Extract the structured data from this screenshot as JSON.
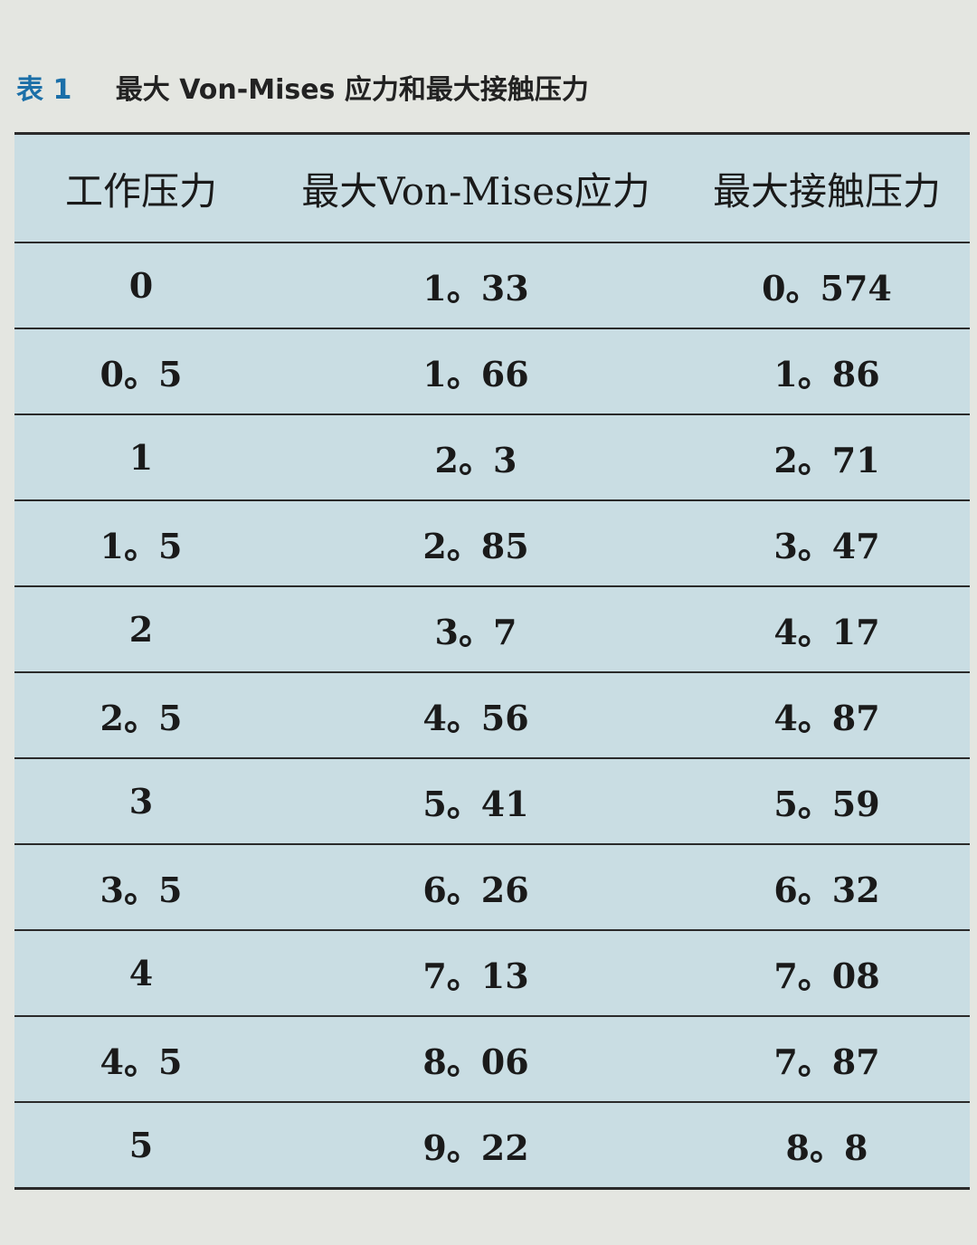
{
  "caption": {
    "label": "表 1",
    "title": "最大 Von-Mises 应力和最大接触压力"
  },
  "table": {
    "headers": [
      "工作压力",
      "最大Von-Mises应力",
      "最大接触压力"
    ],
    "rows": [
      [
        "0",
        "1。33",
        "0。574"
      ],
      [
        "0。5",
        "1。66",
        "1。86"
      ],
      [
        "1",
        "2。3",
        "2。71"
      ],
      [
        "1。5",
        "2。85",
        "3。47"
      ],
      [
        "2",
        "3。7",
        "4。17"
      ],
      [
        "2。5",
        "4。56",
        "4。87"
      ],
      [
        "3",
        "5。41",
        "5。59"
      ],
      [
        "3。5",
        "6。26",
        "6。32"
      ],
      [
        "4",
        "7。13",
        "7。08"
      ],
      [
        "4。5",
        "8。06",
        "7。87"
      ],
      [
        "5",
        "9。22",
        "8。8"
      ]
    ]
  }
}
